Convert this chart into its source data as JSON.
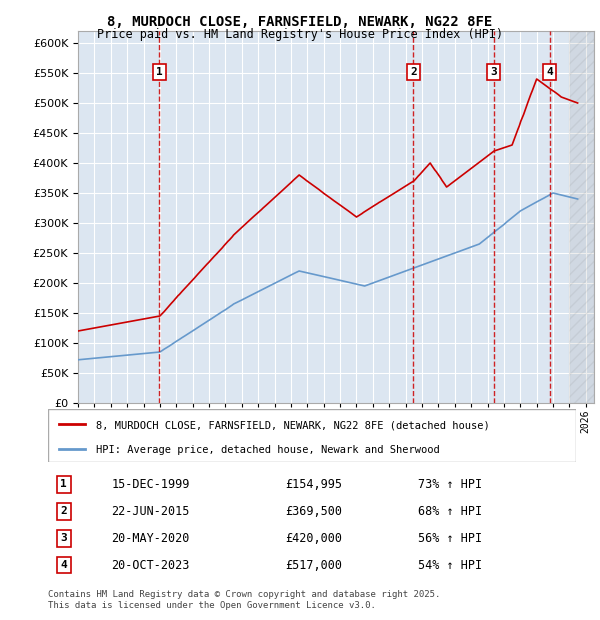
{
  "title": "8, MURDOCH CLOSE, FARNSFIELD, NEWARK, NG22 8FE",
  "subtitle": "Price paid vs. HM Land Registry's House Price Index (HPI)",
  "ylabel": "",
  "ylim": [
    0,
    620000
  ],
  "yticks": [
    0,
    50000,
    100000,
    150000,
    200000,
    250000,
    300000,
    350000,
    400000,
    450000,
    500000,
    550000,
    600000
  ],
  "xlim_start": 1995.0,
  "xlim_end": 2026.5,
  "bg_color": "#dce6f1",
  "plot_bg": "#dce6f1",
  "grid_color": "#ffffff",
  "sale_dates": [
    1999.96,
    2015.47,
    2020.38,
    2023.8
  ],
  "sale_prices": [
    154995,
    369500,
    420000,
    517000
  ],
  "sale_labels": [
    "1",
    "2",
    "3",
    "4"
  ],
  "vline_color": "#cc0000",
  "legend_line1": "8, MURDOCH CLOSE, FARNSFIELD, NEWARK, NG22 8FE (detached house)",
  "legend_line2": "HPI: Average price, detached house, Newark and Sherwood",
  "table_entries": [
    {
      "label": "1",
      "date": "15-DEC-1999",
      "price": "£154,995",
      "hpi": "73% ↑ HPI"
    },
    {
      "label": "2",
      "date": "22-JUN-2015",
      "price": "£369,500",
      "hpi": "68% ↑ HPI"
    },
    {
      "label": "3",
      "date": "20-MAY-2020",
      "price": "£420,000",
      "hpi": "56% ↑ HPI"
    },
    {
      "label": "4",
      "date": "20-OCT-2023",
      "price": "£517,000",
      "hpi": "54% ↑ HPI"
    }
  ],
  "footer": "Contains HM Land Registry data © Crown copyright and database right 2025.\nThis data is licensed under the Open Government Licence v3.0.",
  "red_line_color": "#cc0000",
  "blue_line_color": "#6699cc"
}
